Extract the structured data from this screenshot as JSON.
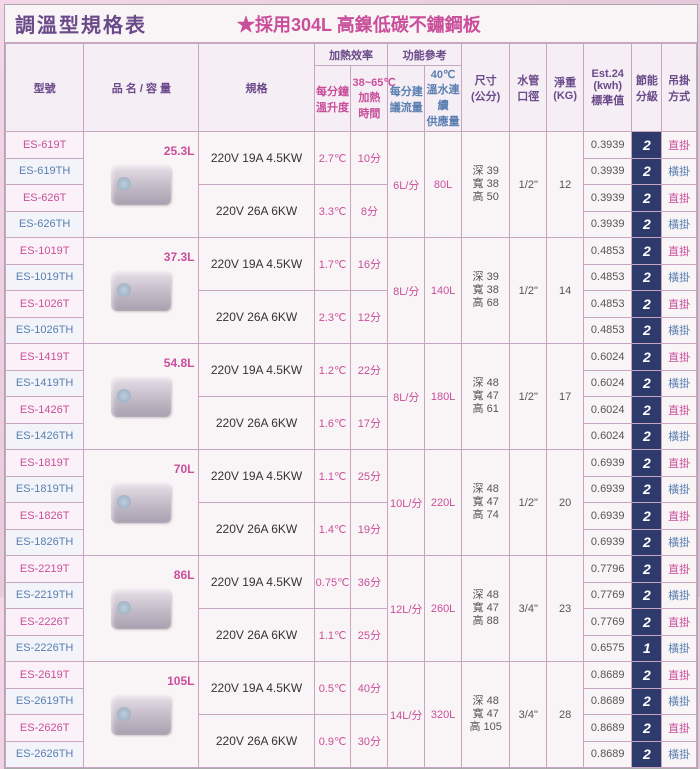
{
  "title": {
    "main": "調溫型規格表",
    "sub": "★採用304L 高鎳低碳不鏽鋼板"
  },
  "headers": {
    "model": "型號",
    "capacity": "品 名 / 容 量",
    "spec": "規格",
    "heat_eff": "加熱效率",
    "func_ref": "功能參考",
    "heat1": "每分鐘\n溫升度",
    "heat2": "38~65℃\n加熱\n時間",
    "func1": "每分建\n議流量",
    "func2": "40℃\n溫水連續\n供應量",
    "size": "尺寸\n(公分)",
    "pipe": "水管\n口徑",
    "weight": "淨重\n(KG)",
    "est": "Est.24\n(kwh)\n標準值",
    "grade": "節能\n分級",
    "mount": "吊掛\n方式"
  },
  "groups": [
    {
      "capacity": "25.3L",
      "specs": [
        "220V 19A 4.5KW",
        "220V 26A 6KW"
      ],
      "heat1": [
        "2.7℃",
        "3.3℃"
      ],
      "heat2": [
        "10分",
        "8分"
      ],
      "func1": "6L/分",
      "func2": "80L",
      "size": "深 39\n寬 38\n高 50",
      "pipe": "1/2\"",
      "weight": "12",
      "rows": [
        {
          "model": "ES-619T",
          "colorModel": "red",
          "est": "0.3939",
          "grade": "2",
          "mount": "直掛",
          "mcolor": "red"
        },
        {
          "model": "ES-619TH",
          "colorModel": "blue",
          "est": "0.3939",
          "grade": "2",
          "mount": "橫掛",
          "mcolor": "blue"
        },
        {
          "model": "ES-626T",
          "colorModel": "red",
          "est": "0.3939",
          "grade": "2",
          "mount": "直掛",
          "mcolor": "red"
        },
        {
          "model": "ES-626TH",
          "colorModel": "blue",
          "est": "0.3939",
          "grade": "2",
          "mount": "橫掛",
          "mcolor": "blue"
        }
      ]
    },
    {
      "capacity": "37.3L",
      "specs": [
        "220V 19A 4.5KW",
        "220V 26A 6KW"
      ],
      "heat1": [
        "1.7℃",
        "2.3℃"
      ],
      "heat2": [
        "16分",
        "12分"
      ],
      "func1": "8L/分",
      "func2": "140L",
      "size": "深 39\n寬 38\n高 68",
      "pipe": "1/2\"",
      "weight": "14",
      "rows": [
        {
          "model": "ES-1019T",
          "colorModel": "red",
          "est": "0.4853",
          "grade": "2",
          "mount": "直掛",
          "mcolor": "red"
        },
        {
          "model": "ES-1019TH",
          "colorModel": "blue",
          "est": "0.4853",
          "grade": "2",
          "mount": "橫掛",
          "mcolor": "blue"
        },
        {
          "model": "ES-1026T",
          "colorModel": "red",
          "est": "0.4853",
          "grade": "2",
          "mount": "直掛",
          "mcolor": "red"
        },
        {
          "model": "ES-1026TH",
          "colorModel": "blue",
          "est": "0.4853",
          "grade": "2",
          "mount": "橫掛",
          "mcolor": "blue"
        }
      ]
    },
    {
      "capacity": "54.8L",
      "specs": [
        "220V 19A 4.5KW",
        "220V 26A 6KW"
      ],
      "heat1": [
        "1.2℃",
        "1.6℃"
      ],
      "heat2": [
        "22分",
        "17分"
      ],
      "func1": "8L/分",
      "func2": "180L",
      "size": "深 48\n寬 47\n高 61",
      "pipe": "1/2\"",
      "weight": "17",
      "rows": [
        {
          "model": "ES-1419T",
          "colorModel": "red",
          "est": "0.6024",
          "grade": "2",
          "mount": "直掛",
          "mcolor": "red"
        },
        {
          "model": "ES-1419TH",
          "colorModel": "blue",
          "est": "0.6024",
          "grade": "2",
          "mount": "橫掛",
          "mcolor": "blue"
        },
        {
          "model": "ES-1426T",
          "colorModel": "red",
          "est": "0.6024",
          "grade": "2",
          "mount": "直掛",
          "mcolor": "red"
        },
        {
          "model": "ES-1426TH",
          "colorModel": "blue",
          "est": "0.6024",
          "grade": "2",
          "mount": "橫掛",
          "mcolor": "blue"
        }
      ]
    },
    {
      "capacity": "70L",
      "specs": [
        "220V 19A 4.5KW",
        "220V 26A 6KW"
      ],
      "heat1": [
        "1.1℃",
        "1.4℃"
      ],
      "heat2": [
        "25分",
        "19分"
      ],
      "func1": "10L/分",
      "func2": "220L",
      "size": "深 48\n寬 47\n高 74",
      "pipe": "1/2\"",
      "weight": "20",
      "rows": [
        {
          "model": "ES-1819T",
          "colorModel": "red",
          "est": "0.6939",
          "grade": "2",
          "mount": "直掛",
          "mcolor": "red"
        },
        {
          "model": "ES-1819TH",
          "colorModel": "blue",
          "est": "0.6939",
          "grade": "2",
          "mount": "橫掛",
          "mcolor": "blue"
        },
        {
          "model": "ES-1826T",
          "colorModel": "red",
          "est": "0.6939",
          "grade": "2",
          "mount": "直掛",
          "mcolor": "red"
        },
        {
          "model": "ES-1826TH",
          "colorModel": "blue",
          "est": "0.6939",
          "grade": "2",
          "mount": "橫掛",
          "mcolor": "blue"
        }
      ]
    },
    {
      "capacity": "86L",
      "specs": [
        "220V 19A 4.5KW",
        "220V 26A 6KW"
      ],
      "heat1": [
        "0.75℃",
        "1.1℃"
      ],
      "heat2": [
        "36分",
        "25分"
      ],
      "func1": "12L/分",
      "func2": "260L",
      "size": "深 48\n寬 47\n高 88",
      "pipe": "3/4\"",
      "weight": "23",
      "rows": [
        {
          "model": "ES-2219T",
          "colorModel": "red",
          "est": "0.7796",
          "grade": "2",
          "mount": "直掛",
          "mcolor": "red"
        },
        {
          "model": "ES-2219TH",
          "colorModel": "blue",
          "est": "0.7769",
          "grade": "2",
          "mount": "橫掛",
          "mcolor": "blue"
        },
        {
          "model": "ES-2226T",
          "colorModel": "red",
          "est": "0.7769",
          "grade": "2",
          "mount": "直掛",
          "mcolor": "red"
        },
        {
          "model": "ES-2226TH",
          "colorModel": "blue",
          "est": "0.6575",
          "grade": "1",
          "mount": "橫掛",
          "mcolor": "blue"
        }
      ]
    },
    {
      "capacity": "105L",
      "specs": [
        "220V 19A 4.5KW",
        "220V 26A 6KW"
      ],
      "heat1": [
        "0.5℃",
        "0.9℃"
      ],
      "heat2": [
        "40分",
        "30分"
      ],
      "func1": "14L/分",
      "func2": "320L",
      "size": "深 48\n寬 47\n高 105",
      "pipe": "3/4\"",
      "weight": "28",
      "rows": [
        {
          "model": "ES-2619T",
          "colorModel": "red",
          "est": "0.8689",
          "grade": "2",
          "mount": "直掛",
          "mcolor": "red"
        },
        {
          "model": "ES-2619TH",
          "colorModel": "blue",
          "est": "0.8689",
          "grade": "2",
          "mount": "橫掛",
          "mcolor": "blue"
        },
        {
          "model": "ES-2626T",
          "colorModel": "red",
          "est": "0.8689",
          "grade": "2",
          "mount": "直掛",
          "mcolor": "red"
        },
        {
          "model": "ES-2626TH",
          "colorModel": "blue",
          "est": "0.8689",
          "grade": "2",
          "mount": "橫掛",
          "mcolor": "blue"
        }
      ]
    }
  ]
}
